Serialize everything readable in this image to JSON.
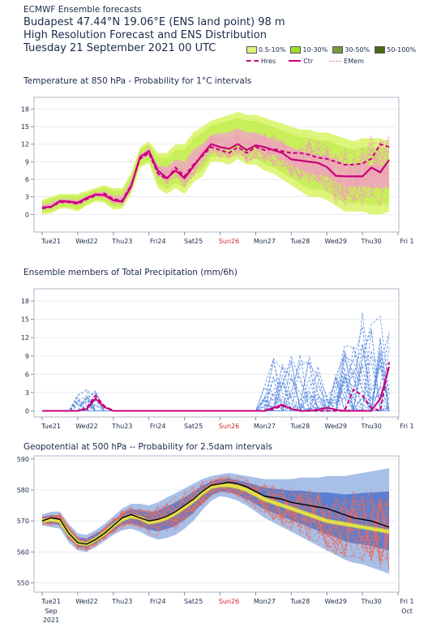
{
  "header": {
    "line1": "ECMWF Ensemble forecasts",
    "line2": "Budapest 47.44°N 19.06°E (ENS land point) 98 m",
    "line3": "High Resolution Forecast and ENS Distribution",
    "line4": "Tuesday 21 September 2021 00 UTC"
  },
  "legend": {
    "bands": [
      {
        "label": "0.5-10%",
        "color": "#ddf57a"
      },
      {
        "label": "10-30%",
        "color": "#9be022"
      },
      {
        "label": "30-50%",
        "color": "#7a9a3a"
      },
      {
        "label": "50-100%",
        "color": "#4a6a14"
      }
    ],
    "lines": [
      {
        "label": "Hres",
        "color": "#c8007a",
        "style": "dashed"
      },
      {
        "label": "Ctr",
        "color": "#c8007a",
        "style": "solid"
      },
      {
        "label": "EMem",
        "color": "#f090b0",
        "style": "dashed"
      }
    ]
  },
  "colors": {
    "hres": "#c8007a",
    "ctr": "#c8007a",
    "members_temp": "#f0a0b8",
    "members_precip": "#5a8ae0",
    "z500_band_outer": "#a8bfe8",
    "z500_band_inner": "#5a7fd0",
    "z500_core": "#d4e83a",
    "z500_hres": "#000000",
    "z500_mean": "#f0e04a",
    "sunday": "#d4232b"
  },
  "x_axis": {
    "days": [
      "Tue21",
      "Wed22",
      "Thu23",
      "Fri24",
      "Sat25",
      "Sun26",
      "Mon27",
      "Tue28",
      "Wed29",
      "Thu30",
      "Fri 1"
    ],
    "highlight": "Sun26",
    "start_month": "Sep",
    "start_year": "2021",
    "end_month": "Oct"
  },
  "chart_data": [
    {
      "type": "line",
      "title": "Temperature at 850 hPa - Probability for 1°C intervals",
      "ylabel": "",
      "ylim": [
        -3,
        20
      ],
      "yticks": [
        0,
        3,
        6,
        9,
        12,
        15,
        18
      ],
      "x_days": [
        0,
        0.25,
        0.5,
        0.75,
        1,
        1.25,
        1.5,
        1.75,
        2,
        2.25,
        2.5,
        2.75,
        3,
        3.25,
        3.5,
        3.75,
        4,
        4.25,
        4.5,
        4.75,
        5,
        5.25,
        5.5,
        5.75,
        6,
        6.25,
        6.5,
        6.75,
        7,
        7.25,
        7.5,
        7.75,
        8,
        8.25,
        8.5,
        8.75,
        9,
        9.25,
        9.5,
        9.75
      ],
      "series": [
        {
          "name": "Hres",
          "values": [
            1,
            1.3,
            2.1,
            2.1,
            1.8,
            2.6,
            3.2,
            3.6,
            2.6,
            2.4,
            5,
            9.5,
            10.5,
            7,
            6,
            8,
            6.5,
            8.5,
            10,
            11.5,
            11,
            10.5,
            11.5,
            10.5,
            11.5,
            11,
            11.2,
            10.8,
            10.5,
            10.5,
            10.2,
            9.7,
            9.5,
            9,
            8.5,
            8.5,
            8.7,
            9.5,
            12,
            11.5
          ]
        },
        {
          "name": "Ctr",
          "values": [
            1.2,
            1.3,
            2.3,
            2.2,
            2.0,
            2.8,
            3.4,
            3.3,
            2.4,
            2.2,
            4.8,
            9.8,
            10.8,
            7.5,
            6.2,
            7.5,
            6.2,
            8.2,
            10.2,
            12,
            11.5,
            11.2,
            12.0,
            11.0,
            11.8,
            11.5,
            11.0,
            10.5,
            9.4,
            9.2,
            9.0,
            8.8,
            8.1,
            6.6,
            6.5,
            6.5,
            6.5,
            8.0,
            7.2,
            9.3
          ]
        }
      ],
      "band_10_90": {
        "low": [
          0,
          0.2,
          1,
          1,
          0.5,
          1.5,
          2.2,
          2.0,
          0.8,
          1.0,
          3.5,
          8.0,
          8.8,
          4.5,
          3.5,
          4.5,
          3.5,
          5.5,
          6.5,
          9.0,
          9.0,
          8.5,
          9.5,
          8.5,
          8.5,
          7.5,
          7.0,
          6.0,
          5.0,
          4.0,
          3.0,
          3.0,
          2.5,
          1.5,
          0.5,
          0.5,
          0.5,
          0,
          0,
          0.5
        ],
        "high": [
          2.5,
          3.0,
          3.5,
          3.5,
          3.5,
          4.0,
          4.5,
          5.0,
          4.5,
          4.5,
          7.0,
          11.5,
          12.5,
          10.5,
          10.5,
          12.0,
          12.0,
          14.0,
          15.0,
          16.0,
          16.5,
          17.0,
          17.5,
          17.0,
          17.0,
          16.5,
          16.0,
          15.5,
          15.0,
          14.5,
          14.5,
          14.0,
          14.0,
          13.5,
          13.0,
          12.5,
          13.0,
          13.0,
          13.0,
          12.5
        ]
      }
    },
    {
      "type": "line",
      "title": "Ensemble members of Total Precipitation (mm/6h)",
      "ylabel": "",
      "ylim": [
        -1,
        20
      ],
      "yticks": [
        0,
        3,
        6,
        9,
        12,
        15,
        18
      ],
      "x_days": [
        0,
        0.25,
        0.5,
        0.75,
        1,
        1.25,
        1.5,
        1.75,
        2,
        2.25,
        2.5,
        2.75,
        3,
        3.25,
        3.5,
        3.75,
        4,
        4.25,
        4.5,
        4.75,
        5,
        5.25,
        5.5,
        5.75,
        6,
        6.25,
        6.5,
        6.75,
        7,
        7.25,
        7.5,
        7.75,
        8,
        8.25,
        8.5,
        8.75,
        9,
        9.25,
        9.5,
        9.75
      ],
      "series": [
        {
          "name": "Hres",
          "values": [
            0,
            0,
            0,
            0,
            0,
            0.5,
            2.5,
            0.8,
            0,
            0,
            0,
            0,
            0,
            0,
            0,
            0,
            0,
            0,
            0,
            0,
            0,
            0,
            0,
            0,
            0,
            0,
            0.3,
            0.8,
            0.4,
            0,
            0,
            0,
            0,
            0,
            0,
            3.5,
            2.5,
            0.5,
            0,
            8
          ]
        },
        {
          "name": "Ctr",
          "values": [
            0,
            0,
            0,
            0,
            0,
            0.3,
            2.0,
            0.6,
            0,
            0,
            0,
            0,
            0,
            0,
            0,
            0,
            0,
            0,
            0,
            0,
            0,
            0,
            0,
            0,
            0,
            0,
            0.5,
            1.0,
            0.3,
            0,
            0,
            0.2,
            0.5,
            0.2,
            0,
            0,
            0,
            0,
            2.0,
            7.2
          ]
        }
      ],
      "member_peaks": [
        {
          "day": 1.25,
          "value": 3.5
        },
        {
          "day": 6.5,
          "value": 5.5
        },
        {
          "day": 6.75,
          "value": 9.5
        },
        {
          "day": 7.5,
          "value": 9.5
        },
        {
          "day": 8.5,
          "value": 6.0
        },
        {
          "day": 8.75,
          "value": 11.0
        },
        {
          "day": 9.25,
          "value": 18.0
        },
        {
          "day": 9.75,
          "value": 13.0
        }
      ]
    },
    {
      "type": "line",
      "title": "Geopotential at 500 hPa -- Probability for 2.5dam intervals",
      "ylabel": "",
      "ylim": [
        547,
        591
      ],
      "yticks": [
        550,
        560,
        570,
        580,
        590
      ],
      "x_days": [
        0,
        0.25,
        0.5,
        0.75,
        1,
        1.25,
        1.5,
        1.75,
        2,
        2.25,
        2.5,
        2.75,
        3,
        3.25,
        3.5,
        3.75,
        4,
        4.25,
        4.5,
        4.75,
        5,
        5.25,
        5.5,
        5.75,
        6,
        6.25,
        6.5,
        6.75,
        7,
        7.25,
        7.5,
        7.75,
        8,
        8.25,
        8.5,
        8.75,
        9,
        9.25,
        9.5,
        9.75
      ],
      "series": [
        {
          "name": "Hres",
          "values": [
            570,
            571,
            570.5,
            566,
            563,
            562.5,
            564,
            566,
            568.5,
            571,
            572,
            571,
            570,
            570.5,
            571.5,
            573,
            575,
            577,
            579.5,
            581.5,
            582,
            582.5,
            582,
            581,
            579.5,
            578,
            577.5,
            577,
            576,
            575.5,
            575,
            574.5,
            574,
            573,
            572,
            571,
            570.5,
            570,
            569,
            568
          ]
        },
        {
          "name": "Ens mean",
          "values": [
            570,
            570.5,
            570,
            566,
            563,
            562.5,
            564,
            566,
            568.5,
            570.5,
            571.5,
            571,
            569.5,
            570,
            571,
            572.5,
            574.5,
            576.5,
            579,
            581,
            581.5,
            581.5,
            581,
            580,
            578.5,
            577,
            576,
            575,
            574,
            573,
            572,
            571,
            570,
            569.5,
            569,
            568.5,
            568,
            567.5,
            567,
            566.5
          ]
        }
      ],
      "band_outer": {
        "low": [
          568.5,
          568,
          567.5,
          563,
          560.5,
          560,
          561.5,
          563.5,
          565.5,
          567,
          567.5,
          566.5,
          565,
          564,
          564.5,
          565.5,
          567.5,
          570,
          573.5,
          576.5,
          578,
          577.5,
          576.5,
          575,
          573,
          571,
          569.5,
          568,
          566.5,
          565,
          563.5,
          562,
          560.5,
          559,
          557.5,
          556.5,
          556,
          555,
          554,
          553
        ],
        "high": [
          572,
          573,
          573,
          569,
          566,
          565.5,
          567,
          569,
          571.5,
          574,
          575.5,
          575.5,
          575,
          576,
          577.5,
          579,
          580.5,
          582,
          583.5,
          584.5,
          585,
          585.5,
          585,
          584.5,
          584,
          583.5,
          583.5,
          583.5,
          583.5,
          584,
          584,
          584,
          584.5,
          584.5,
          584.5,
          585,
          585.5,
          586,
          586.5,
          587
        ]
      }
    }
  ]
}
